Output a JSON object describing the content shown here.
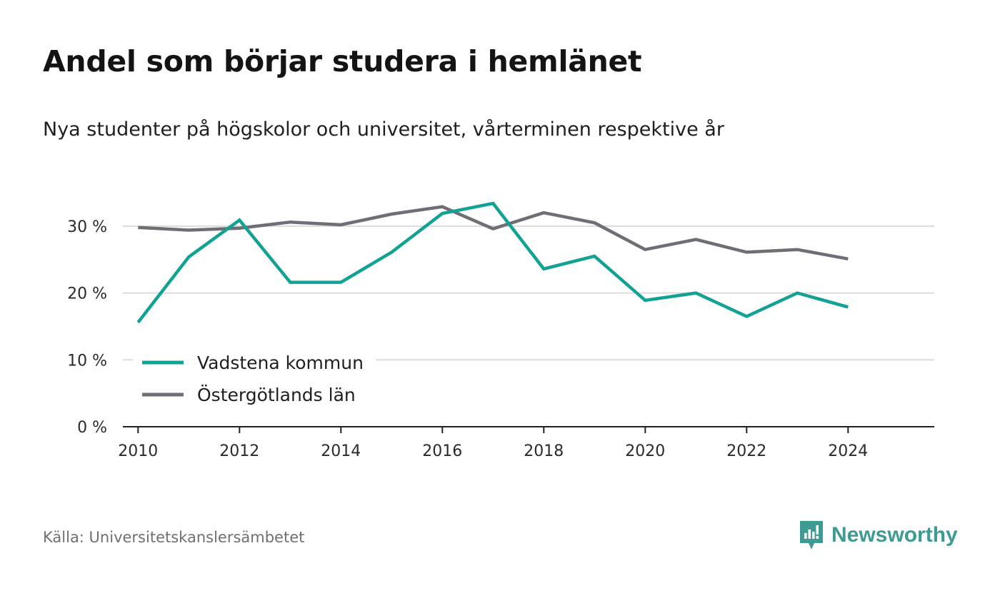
{
  "header": {
    "title": "Andel som börjar studera i hemlänet",
    "subtitle": "Nya studenter på högskolor och universitet, vårterminen respektive år"
  },
  "footer": {
    "source": "Källa: Universitetskanslersämbetet",
    "brand": "Newsworthy",
    "brand_icon": "newsworthy-logo-icon"
  },
  "colors": {
    "vadstena": "#11a294",
    "ostergotland": "#6f6e76",
    "grid": "#dcdcdc",
    "axis": "#222222",
    "brand": "#3d9b93"
  },
  "chart_data": {
    "type": "line",
    "x": [
      2010,
      2011,
      2012,
      2013,
      2014,
      2015,
      2016,
      2017,
      2018,
      2019,
      2020,
      2021,
      2022,
      2023,
      2024
    ],
    "x_ticks": [
      2010,
      2012,
      2014,
      2016,
      2018,
      2020,
      2022,
      2024
    ],
    "x_tick_labels": [
      "2010",
      "2012",
      "2014",
      "2016",
      "2018",
      "2020",
      "2022",
      "2024"
    ],
    "y_ticks": [
      0,
      10,
      20,
      30
    ],
    "y_tick_labels": [
      "0 %",
      "10 %",
      "20 %",
      "30 %"
    ],
    "xlim": [
      2009.7,
      2025.7
    ],
    "ylim": [
      0,
      35
    ],
    "xlabel": "",
    "ylabel": "",
    "grid": true,
    "legend_position": "bottom-left",
    "series": [
      {
        "name": "Vadstena kommun",
        "color": "#11a294",
        "values": [
          15.6,
          25.4,
          30.9,
          21.6,
          21.6,
          26.1,
          31.9,
          33.4,
          23.6,
          25.5,
          18.9,
          20.0,
          16.5,
          20.0,
          17.9
        ]
      },
      {
        "name": "Östergötlands län",
        "color": "#6f6e76",
        "values": [
          29.8,
          29.4,
          29.7,
          30.6,
          30.2,
          31.8,
          32.9,
          29.6,
          32.0,
          30.5,
          26.5,
          28.0,
          26.1,
          26.5,
          25.1
        ]
      }
    ]
  }
}
